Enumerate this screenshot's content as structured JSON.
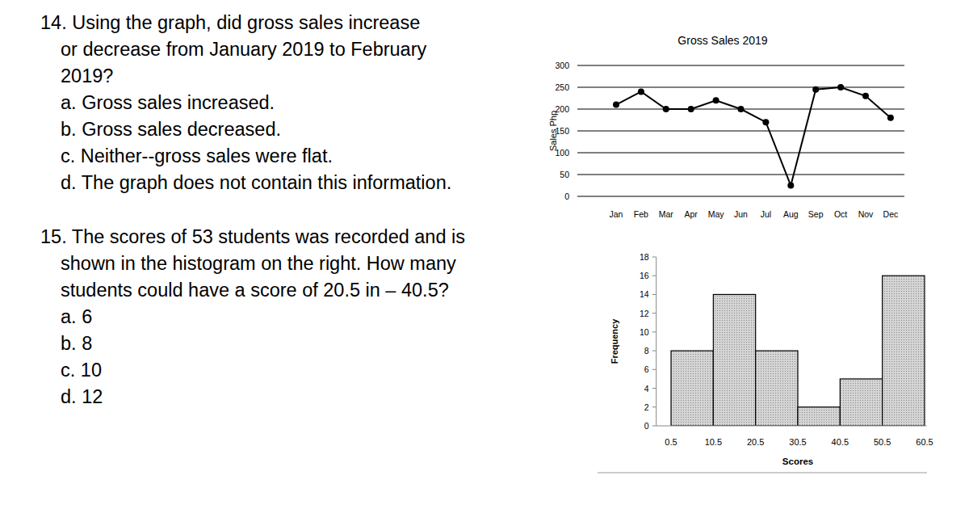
{
  "questions": [
    {
      "lines": [
        "14. Using the graph, did gross sales increase",
        "or decrease from January 2019 to February",
        "2019?"
      ],
      "options": [
        "a. Gross sales increased.",
        "b. Gross sales decreased.",
        "c. Neither--gross sales were flat.",
        "d. The graph does not contain this information."
      ]
    },
    {
      "lines": [
        "15. The scores of 53 students was recorded and is",
        "shown in the histogram on the right. How many",
        "students could have a score of 20.5 in – 40.5?"
      ],
      "options": [
        "a. 6",
        "b. 8",
        "c. 10",
        "d. 12"
      ]
    }
  ],
  "chart_data": [
    {
      "type": "line",
      "title": "Gross Sales 2019",
      "y_label": "Sales Php",
      "categories": [
        "Jan",
        "Feb",
        "Mar",
        "Apr",
        "May",
        "Jun",
        "Jul",
        "Aug",
        "Sep",
        "Oct",
        "Nov",
        "Dec"
      ],
      "values": [
        210,
        240,
        200,
        200,
        220,
        200,
        170,
        25,
        245,
        250,
        230,
        180
      ],
      "color": "#000000",
      "marker": "circle",
      "ylim": [
        0,
        300
      ],
      "yticks": [
        0,
        50,
        100,
        150,
        200,
        250,
        300
      ],
      "grid": true
    },
    {
      "type": "histogram",
      "x_label": "Scores",
      "y_label": "Frequency",
      "bins": [
        0.5,
        10.5,
        20.5,
        30.5,
        40.5,
        50.5,
        60.5
      ],
      "values": [
        8,
        14,
        8,
        2,
        5,
        16
      ],
      "color": "#d4d4d4",
      "xlim": [
        -3,
        61
      ],
      "xticks": [
        0.5,
        10.5,
        20.5,
        30.5,
        40.5,
        50.5,
        60.5
      ],
      "ylim": [
        0,
        18
      ],
      "yticks": [
        0,
        2,
        4,
        6,
        8,
        10,
        12,
        14,
        16,
        18
      ],
      "grid": false
    }
  ]
}
